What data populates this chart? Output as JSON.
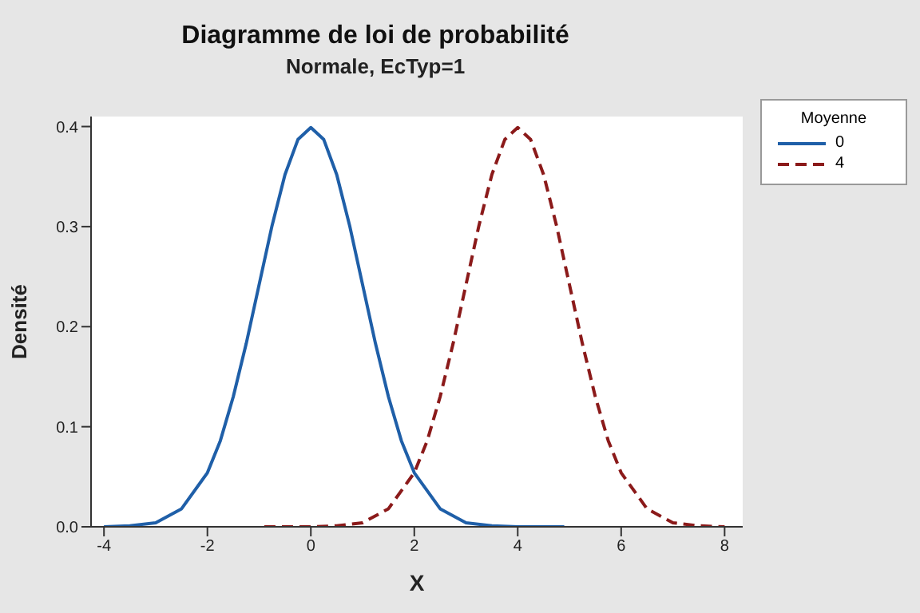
{
  "chart_data": {
    "type": "line",
    "title": "Diagramme de loi de probabilité",
    "subtitle": "Normale, EcTyp=1",
    "xlabel": "X",
    "ylabel": "Densité",
    "legend_title": "Moyenne",
    "legend": "top right",
    "marker": "none",
    "grid": false,
    "xlim": [
      -4.25,
      8.35
    ],
    "xticks": [
      -4,
      -2,
      0,
      2,
      4,
      6,
      8
    ],
    "ylim": [
      0,
      0.41
    ],
    "yticks": [
      {
        "value": 0,
        "label": "0.0"
      },
      0.1,
      0.2,
      0.3,
      0.4
    ],
    "series": [
      {
        "name": "0",
        "color": "#1f5fa8",
        "line_style": "solid",
        "x": [
          -4,
          -3.5,
          -3,
          -2.5,
          -2,
          -1.75,
          -1.5,
          -1.25,
          -1,
          -0.75,
          -0.5,
          -0.25,
          0,
          0.25,
          0.5,
          0.75,
          1,
          1.25,
          1.5,
          1.75,
          2,
          2.5,
          3,
          3.5,
          4,
          4.9
        ],
        "values": [
          0,
          0.001,
          0.004,
          0.018,
          0.054,
          0.086,
          0.13,
          0.183,
          0.242,
          0.301,
          0.352,
          0.387,
          0.399,
          0.387,
          0.352,
          0.301,
          0.242,
          0.183,
          0.13,
          0.086,
          0.054,
          0.018,
          0.004,
          0.001,
          0,
          0
        ]
      },
      {
        "name": "4",
        "color": "#8b1a1a",
        "line_style": "dashed",
        "x": [
          -0.9,
          0,
          0.5,
          1,
          1.5,
          2,
          2.25,
          2.5,
          2.75,
          3,
          3.25,
          3.5,
          3.75,
          4,
          4.25,
          4.5,
          4.75,
          5,
          5.25,
          5.5,
          5.75,
          6,
          6.5,
          7,
          7.5,
          8
        ],
        "values": [
          0,
          0,
          0.001,
          0.004,
          0.018,
          0.054,
          0.086,
          0.13,
          0.183,
          0.242,
          0.301,
          0.352,
          0.387,
          0.399,
          0.387,
          0.352,
          0.301,
          0.242,
          0.183,
          0.13,
          0.086,
          0.054,
          0.018,
          0.004,
          0.001,
          0
        ]
      }
    ]
  }
}
